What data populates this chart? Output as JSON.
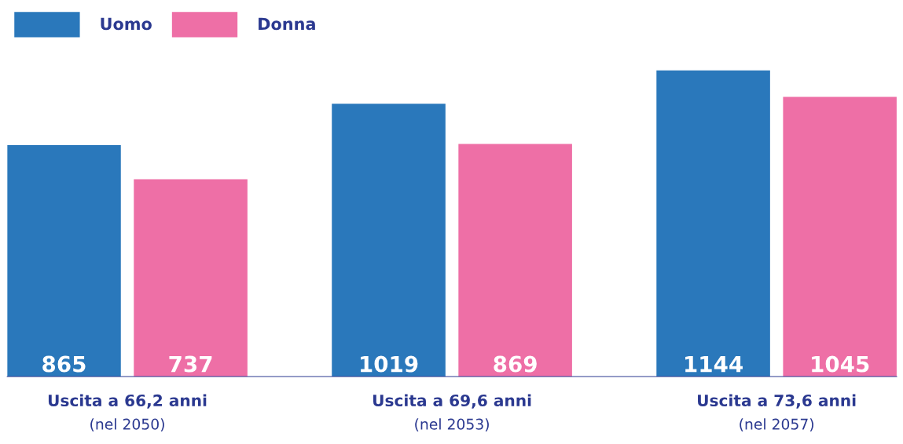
{
  "chart_data": {
    "type": "bar",
    "categories": [
      "Uscita a 66,2 anni\n(nel 2050)",
      "Uscita a 69,6 anni\n(nel 2053)",
      "Uscita a 73,6 anni\n(nel 2057)"
    ],
    "series": [
      {
        "name": "Uomo",
        "color": "#2a78bb",
        "values": [
          865,
          1019,
          1144
        ]
      },
      {
        "name": "Donna",
        "color": "#ee6fa6",
        "values": [
          737,
          869,
          1045
        ]
      }
    ],
    "data_labels": true,
    "legend": "top left"
  }
}
